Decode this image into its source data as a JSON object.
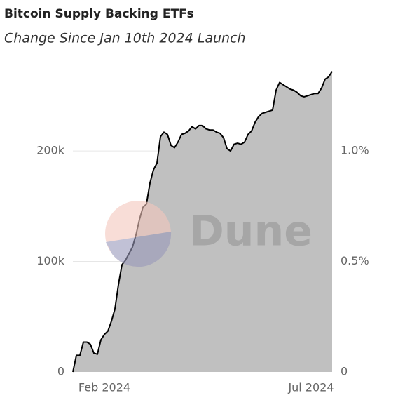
{
  "chart_data": {
    "type": "area",
    "title": "Bitcoin Supply Backing ETFs",
    "subtitle": "Change Since Jan 10th 2024 Launch",
    "watermark": "Dune",
    "categories": [
      null,
      null,
      null,
      null,
      null,
      null,
      null,
      null,
      null,
      "Feb 2024",
      null,
      null,
      null,
      null,
      null,
      null,
      null,
      null,
      null,
      null,
      null,
      null,
      null,
      null,
      null,
      null,
      null,
      null,
      null,
      null,
      null,
      null,
      null,
      null,
      null,
      null,
      null,
      null,
      null,
      null,
      null,
      null,
      null,
      null,
      null,
      null,
      null,
      null,
      null,
      null,
      null,
      null,
      null,
      null,
      null,
      null,
      null,
      null,
      null,
      null,
      null,
      null,
      null,
      null,
      null,
      null,
      null,
      null,
      "Jul 2024",
      null,
      null,
      null,
      null,
      null,
      null
    ],
    "series": [
      {
        "color": "#000000",
        "fill": "#c0c0c0",
        "values": [
          0,
          15000,
          15000,
          27000,
          27000,
          25000,
          17000,
          16000,
          29000,
          34000,
          37000,
          46000,
          57000,
          79000,
          97000,
          101000,
          107000,
          113000,
          124000,
          138000,
          149000,
          152000,
          171000,
          183000,
          189000,
          213000,
          217000,
          215000,
          205000,
          203000,
          208000,
          215000,
          216000,
          218000,
          222000,
          220000,
          223000,
          223000,
          220000,
          219000,
          219000,
          217000,
          216000,
          212000,
          202000,
          200000,
          206000,
          207000,
          206000,
          208000,
          215000,
          218000,
          226000,
          231000,
          234000,
          235000,
          236000,
          237000,
          255000,
          262000,
          260000,
          258000,
          256000,
          255000,
          253000,
          250000,
          249000,
          250000,
          251000,
          252000,
          252000,
          257000,
          265000,
          267000,
          272000
        ]
      }
    ],
    "ylim": [
      0,
      275000
    ],
    "yticks": [
      0,
      {
        "value": 100000,
        "label": "100k"
      },
      {
        "value": 200000,
        "label": "200k"
      }
    ],
    "y2lim": [
      0,
      1.375
    ],
    "y2ticks": [
      0,
      {
        "value": 0.5,
        "label": "0.5%"
      },
      {
        "value": 1.0,
        "label": "1.0%"
      }
    ],
    "grid": true
  }
}
